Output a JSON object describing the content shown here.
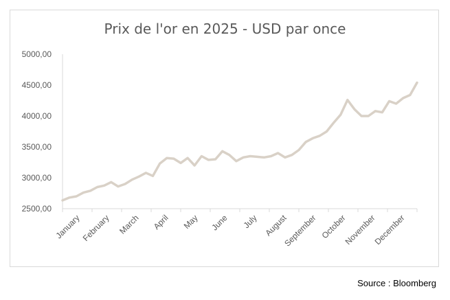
{
  "chart_data": {
    "type": "line",
    "title": "Prix de l'or en 2025 - USD par once",
    "xlabel": "",
    "ylabel": "",
    "ylim": [
      2500,
      5000
    ],
    "yticks": [
      "2500,00",
      "3000,00",
      "3500,00",
      "4000,00",
      "4500,00",
      "5000,00"
    ],
    "months": [
      "January",
      "February",
      "March",
      "April",
      "May",
      "June",
      "July",
      "August",
      "September",
      "October",
      "November",
      "December"
    ],
    "series": [
      {
        "name": "Prix de l'or",
        "color": "#d9d1c7",
        "values": [
          2635,
          2680,
          2700,
          2760,
          2790,
          2850,
          2875,
          2930,
          2860,
          2900,
          2970,
          3020,
          3080,
          3030,
          3230,
          3320,
          3310,
          3240,
          3320,
          3200,
          3350,
          3290,
          3300,
          3430,
          3370,
          3270,
          3330,
          3350,
          3340,
          3330,
          3350,
          3400,
          3330,
          3370,
          3450,
          3580,
          3640,
          3680,
          3750,
          3890,
          4020,
          4260,
          4110,
          4000,
          4000,
          4080,
          4060,
          4240,
          4200,
          4290,
          4340,
          4540
        ]
      }
    ]
  },
  "source": "Source : Bloomberg"
}
